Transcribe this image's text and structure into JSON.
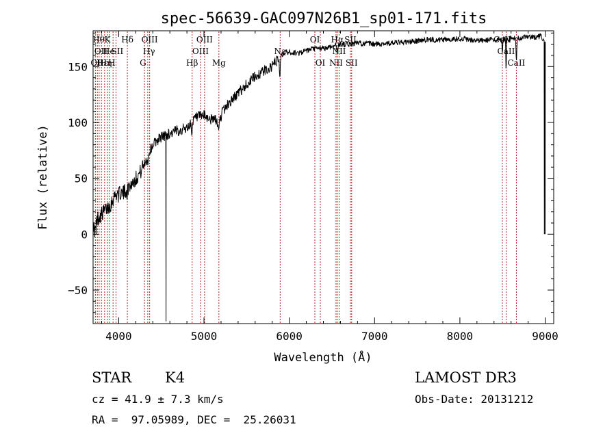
{
  "chart_data": {
    "type": "line",
    "title": "spec-56639-GAC097N26B1_sp01-171.fits",
    "xlabel": "Wavelength (Å)",
    "ylabel": "Flux (relative)",
    "xlim": [
      3700,
      9100
    ],
    "ylim": [
      -80,
      182
    ],
    "x_ticks": [
      {
        "value": 4000,
        "label": "4000"
      },
      {
        "value": 5000,
        "label": "5000"
      },
      {
        "value": 6000,
        "label": "6000"
      },
      {
        "value": 7000,
        "label": "7000"
      },
      {
        "value": 8000,
        "label": "8000"
      },
      {
        "value": 9000,
        "label": "9000"
      }
    ],
    "y_ticks": [
      {
        "value": -50,
        "label": "−50"
      },
      {
        "value": 0,
        "label": "0"
      },
      {
        "value": 50,
        "label": "50"
      },
      {
        "value": 100,
        "label": "100"
      },
      {
        "value": 150,
        "label": "150"
      }
    ],
    "grid": false,
    "line_color": "#000000",
    "marker_color": "#b22222",
    "spectrum_anchors": [
      [
        3700,
        8
      ],
      [
        3720,
        2
      ],
      [
        3750,
        14
      ],
      [
        3800,
        18
      ],
      [
        3850,
        22
      ],
      [
        3900,
        26
      ],
      [
        3950,
        34
      ],
      [
        4000,
        38
      ],
      [
        4050,
        36
      ],
      [
        4100,
        42
      ],
      [
        4150,
        45
      ],
      [
        4200,
        50
      ],
      [
        4250,
        55
      ],
      [
        4300,
        63
      ],
      [
        4350,
        72
      ],
      [
        4400,
        80
      ],
      [
        4450,
        84
      ],
      [
        4500,
        87
      ],
      [
        4600,
        90
      ],
      [
        4700,
        93
      ],
      [
        4800,
        95
      ],
      [
        4900,
        104
      ],
      [
        5000,
        106
      ],
      [
        5100,
        102
      ],
      [
        5200,
        108
      ],
      [
        5300,
        118
      ],
      [
        5400,
        126
      ],
      [
        5500,
        134
      ],
      [
        5600,
        141
      ],
      [
        5700,
        146
      ],
      [
        5800,
        150
      ],
      [
        5850,
        155
      ],
      [
        5950,
        163
      ],
      [
        6100,
        162
      ],
      [
        6200,
        164
      ],
      [
        6300,
        166
      ],
      [
        6400,
        166
      ],
      [
        6500,
        168
      ],
      [
        6600,
        170
      ],
      [
        6700,
        170
      ],
      [
        6800,
        171
      ],
      [
        7000,
        170
      ],
      [
        7200,
        171
      ],
      [
        7400,
        172
      ],
      [
        7600,
        174
      ],
      [
        7800,
        174
      ],
      [
        8000,
        175
      ],
      [
        8200,
        173
      ],
      [
        8400,
        174
      ],
      [
        8600,
        175
      ],
      [
        8800,
        176
      ],
      [
        8950,
        177
      ],
      [
        8990,
        172
      ]
    ],
    "spectrum_dips": [
      [
        4000,
        10,
        -3
      ],
      [
        4100,
        10,
        -5
      ],
      [
        4340,
        12,
        -5
      ],
      [
        4860,
        12,
        -7
      ],
      [
        5170,
        25,
        -10
      ],
      [
        5890,
        6,
        -22
      ],
      [
        6563,
        8,
        -6
      ],
      [
        8498,
        6,
        -10
      ],
      [
        8542,
        5,
        -28
      ],
      [
        8662,
        6,
        -22
      ]
    ],
    "spectrum_spikes": [
      {
        "x": 3735,
        "y": 0
      },
      {
        "x": 4555,
        "y": -78
      },
      {
        "x": 8990,
        "y": 0
      },
      {
        "x": 8996,
        "y": 50
      },
      {
        "x": 8999,
        "y": 0
      },
      {
        "x": 9000,
        "y": 28
      }
    ],
    "lines": [
      {
        "x": 3727,
        "label": "OII",
        "row": 2,
        "align": "start"
      },
      {
        "x": 3750,
        "label": "Hθ",
        "row": 0,
        "align": "start"
      },
      {
        "x": 3771,
        "label": "OII",
        "row": 1,
        "align": "start"
      },
      {
        "x": 3798,
        "label": "Hε",
        "row": 2,
        "align": "start"
      },
      {
        "x": 3835,
        "label": "Hη",
        "row": 2,
        "align": "start"
      },
      {
        "x": 3869,
        "label": "He",
        "row": 1,
        "align": "start"
      },
      {
        "x": 3889,
        "label": "K",
        "row": 0,
        "align": "start"
      },
      {
        "x": 3934,
        "label": "H",
        "row": 2,
        "align": "start"
      },
      {
        "x": 3969,
        "label": "SII",
        "row": 1,
        "align": "start"
      },
      {
        "x": 4102,
        "label": "Hδ",
        "row": 0,
        "align": "middle"
      },
      {
        "x": 4303,
        "label": "G",
        "row": 2,
        "align": "start"
      },
      {
        "x": 4341,
        "label": "Hγ",
        "row": 1,
        "align": "start"
      },
      {
        "x": 4363,
        "label": "OIII",
        "row": 0,
        "align": "middle"
      },
      {
        "x": 4861,
        "label": "Hβ",
        "row": 2,
        "align": "middle"
      },
      {
        "x": 4959,
        "label": "OIII",
        "row": 1,
        "align": "middle"
      },
      {
        "x": 5007,
        "label": "OIII",
        "row": 0,
        "align": "middle"
      },
      {
        "x": 5175,
        "label": "Mg",
        "row": 2,
        "align": "middle"
      },
      {
        "x": 5893,
        "label": "Na",
        "row": 1,
        "align": "middle"
      },
      {
        "x": 6300,
        "label": "OI",
        "row": 0,
        "align": "middle"
      },
      {
        "x": 6364,
        "label": "OI",
        "row": 2,
        "align": "middle"
      },
      {
        "x": 6548,
        "label": "NII",
        "row": 2,
        "align": "middle"
      },
      {
        "x": 6563,
        "label": "Hα",
        "row": 0,
        "align": "middle"
      },
      {
        "x": 6584,
        "label": "NII",
        "row": 1,
        "align": "middle"
      },
      {
        "x": 6717,
        "label": "SII",
        "row": 0,
        "align": "middle"
      },
      {
        "x": 6731,
        "label": "SII",
        "row": 2,
        "align": "middle"
      },
      {
        "x": 8498,
        "label": "CaII",
        "row": 0,
        "align": "middle"
      },
      {
        "x": 8542,
        "label": "CaII",
        "row": 1,
        "align": "middle"
      },
      {
        "x": 8662,
        "label": "CaII",
        "row": 2,
        "align": "middle"
      }
    ]
  },
  "info": {
    "object_class": "STAR",
    "subclass": "K4",
    "survey": "LAMOST DR3",
    "cz": "cz = 41.9 ± 7.3 km/s",
    "obs_date": "Obs-Date: 20131212",
    "coords": "RA =  97.05989, DEC =  25.26031"
  }
}
